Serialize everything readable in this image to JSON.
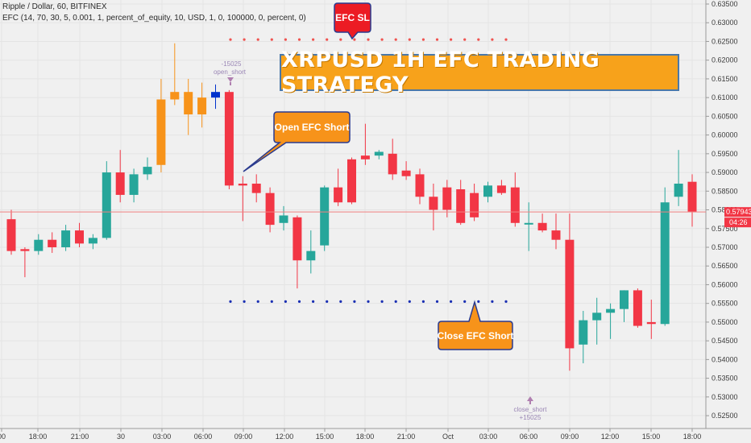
{
  "header": {
    "symbol_line": "Ripple / Dollar, 60, BITFINEX",
    "indicator_line": "EFC (14, 70, 30, 5, 0.001, 1, percent_of_equity, 10, USD, 1, 0, 100000, 0, percent, 0)"
  },
  "banner": {
    "title": "XRPUSD 1H EFC TRADING STRATEGY"
  },
  "callouts": {
    "efc_sl": "EFC SL",
    "open_short": "Open EFC Short",
    "close_short": "Close EFC Short"
  },
  "trade_markers": {
    "open_qty": "-15025",
    "open_label": "open_short",
    "close_label": "close_short",
    "close_qty": "+15025"
  },
  "price_badges": {
    "last_price": "0.57943",
    "countdown": "04:26"
  },
  "colors": {
    "up_teal": "#26a69a",
    "down_red": "#f23645",
    "orange": "#f7931a",
    "blue": "#0033cc",
    "sl_dots": "#ef5350",
    "tp_dots": "#1a2fb3"
  },
  "chart_data": {
    "type": "candlestick",
    "ylim": [
      0.5225,
      0.6375
    ],
    "y_ticks": [
      "0.52500",
      "0.53000",
      "0.53500",
      "0.54000",
      "0.54500",
      "0.55000",
      "0.55500",
      "0.56000",
      "0.56500",
      "0.57000",
      "0.57500",
      "0.58000",
      "0.58500",
      "0.59000",
      "0.59500",
      "0.60000",
      "0.60500",
      "0.61000",
      "0.61500",
      "0.62000",
      "0.62500",
      "0.63000",
      "0.63500"
    ],
    "x_ticks": [
      "00",
      "18:00",
      "21:00",
      "30",
      "03:00",
      "06:00",
      "09:00",
      "12:00",
      "15:00",
      "18:00",
      "21:00",
      "Oct",
      "03:00",
      "06:00",
      "09:00",
      "12:00",
      "15:00",
      "18:00"
    ],
    "stop_loss_level": 0.6255,
    "take_profit_level": 0.5555,
    "last_price": 0.57943,
    "candles": [
      {
        "o": 0.5775,
        "h": 0.58,
        "l": 0.568,
        "c": 0.569,
        "color": "red"
      },
      {
        "o": 0.569,
        "h": 0.57,
        "l": 0.562,
        "c": 0.5695,
        "color": "red"
      },
      {
        "o": 0.569,
        "h": 0.5735,
        "l": 0.568,
        "c": 0.572,
        "color": "teal"
      },
      {
        "o": 0.572,
        "h": 0.574,
        "l": 0.5685,
        "c": 0.57,
        "color": "red"
      },
      {
        "o": 0.57,
        "h": 0.576,
        "l": 0.569,
        "c": 0.5745,
        "color": "teal"
      },
      {
        "o": 0.5745,
        "h": 0.5765,
        "l": 0.57,
        "c": 0.571,
        "color": "red"
      },
      {
        "o": 0.571,
        "h": 0.5735,
        "l": 0.5695,
        "c": 0.5725,
        "color": "teal"
      },
      {
        "o": 0.5725,
        "h": 0.593,
        "l": 0.572,
        "c": 0.59,
        "color": "teal"
      },
      {
        "o": 0.59,
        "h": 0.596,
        "l": 0.582,
        "c": 0.584,
        "color": "red"
      },
      {
        "o": 0.584,
        "h": 0.591,
        "l": 0.582,
        "c": 0.5895,
        "color": "teal"
      },
      {
        "o": 0.5895,
        "h": 0.594,
        "l": 0.588,
        "c": 0.5915,
        "color": "teal"
      },
      {
        "o": 0.592,
        "h": 0.615,
        "l": 0.59,
        "c": 0.6095,
        "color": "orange"
      },
      {
        "o": 0.6095,
        "h": 0.6245,
        "l": 0.608,
        "c": 0.6115,
        "color": "orange"
      },
      {
        "o": 0.6115,
        "h": 0.615,
        "l": 0.6,
        "c": 0.6055,
        "color": "orange"
      },
      {
        "o": 0.6055,
        "h": 0.614,
        "l": 0.602,
        "c": 0.61,
        "color": "orange"
      },
      {
        "o": 0.61,
        "h": 0.6135,
        "l": 0.607,
        "c": 0.6115,
        "color": "blue"
      },
      {
        "o": 0.6115,
        "h": 0.612,
        "l": 0.5855,
        "c": 0.5865,
        "color": "red"
      },
      {
        "o": 0.587,
        "h": 0.589,
        "l": 0.577,
        "c": 0.5865,
        "color": "red"
      },
      {
        "o": 0.587,
        "h": 0.5895,
        "l": 0.582,
        "c": 0.5845,
        "color": "red"
      },
      {
        "o": 0.5845,
        "h": 0.586,
        "l": 0.574,
        "c": 0.576,
        "color": "red"
      },
      {
        "o": 0.5765,
        "h": 0.581,
        "l": 0.5745,
        "c": 0.5785,
        "color": "teal"
      },
      {
        "o": 0.578,
        "h": 0.5785,
        "l": 0.559,
        "c": 0.5665,
        "color": "red"
      },
      {
        "o": 0.5665,
        "h": 0.5745,
        "l": 0.563,
        "c": 0.569,
        "color": "teal"
      },
      {
        "o": 0.5705,
        "h": 0.5865,
        "l": 0.569,
        "c": 0.586,
        "color": "teal"
      },
      {
        "o": 0.586,
        "h": 0.591,
        "l": 0.581,
        "c": 0.582,
        "color": "red"
      },
      {
        "o": 0.582,
        "h": 0.594,
        "l": 0.5815,
        "c": 0.5935,
        "color": "red"
      },
      {
        "o": 0.5935,
        "h": 0.603,
        "l": 0.592,
        "c": 0.5945,
        "color": "red"
      },
      {
        "o": 0.5945,
        "h": 0.596,
        "l": 0.5935,
        "c": 0.5955,
        "color": "teal"
      },
      {
        "o": 0.595,
        "h": 0.599,
        "l": 0.588,
        "c": 0.5895,
        "color": "red"
      },
      {
        "o": 0.5905,
        "h": 0.593,
        "l": 0.588,
        "c": 0.589,
        "color": "red"
      },
      {
        "o": 0.5895,
        "h": 0.591,
        "l": 0.5815,
        "c": 0.5835,
        "color": "red"
      },
      {
        "o": 0.5835,
        "h": 0.587,
        "l": 0.5745,
        "c": 0.58,
        "color": "red"
      },
      {
        "o": 0.586,
        "h": 0.588,
        "l": 0.578,
        "c": 0.58,
        "color": "red"
      },
      {
        "o": 0.5855,
        "h": 0.588,
        "l": 0.576,
        "c": 0.5765,
        "color": "red"
      },
      {
        "o": 0.5845,
        "h": 0.587,
        "l": 0.577,
        "c": 0.578,
        "color": "red"
      },
      {
        "o": 0.5835,
        "h": 0.5875,
        "l": 0.582,
        "c": 0.5865,
        "color": "teal"
      },
      {
        "o": 0.5865,
        "h": 0.588,
        "l": 0.584,
        "c": 0.5845,
        "color": "red"
      },
      {
        "o": 0.586,
        "h": 0.59,
        "l": 0.5755,
        "c": 0.5765,
        "color": "red"
      },
      {
        "o": 0.5765,
        "h": 0.582,
        "l": 0.569,
        "c": 0.5765,
        "color": "teal"
      },
      {
        "o": 0.5765,
        "h": 0.579,
        "l": 0.574,
        "c": 0.5745,
        "color": "red"
      },
      {
        "o": 0.5745,
        "h": 0.579,
        "l": 0.5695,
        "c": 0.572,
        "color": "red"
      },
      {
        "o": 0.572,
        "h": 0.579,
        "l": 0.537,
        "c": 0.543,
        "color": "red"
      },
      {
        "o": 0.544,
        "h": 0.553,
        "l": 0.539,
        "c": 0.5505,
        "color": "teal"
      },
      {
        "o": 0.5505,
        "h": 0.5565,
        "l": 0.544,
        "c": 0.5525,
        "color": "teal"
      },
      {
        "o": 0.5525,
        "h": 0.555,
        "l": 0.5455,
        "c": 0.5535,
        "color": "teal"
      },
      {
        "o": 0.5535,
        "h": 0.5585,
        "l": 0.55,
        "c": 0.5585,
        "color": "teal"
      },
      {
        "o": 0.5585,
        "h": 0.559,
        "l": 0.5485,
        "c": 0.549,
        "color": "red"
      },
      {
        "o": 0.55,
        "h": 0.556,
        "l": 0.5455,
        "c": 0.5495,
        "color": "red"
      },
      {
        "o": 0.5495,
        "h": 0.586,
        "l": 0.549,
        "c": 0.582,
        "color": "teal"
      },
      {
        "o": 0.5835,
        "h": 0.596,
        "l": 0.581,
        "c": 0.587,
        "color": "teal"
      },
      {
        "o": 0.5875,
        "h": 0.5895,
        "l": 0.5755,
        "c": 0.5795,
        "color": "red"
      }
    ]
  }
}
